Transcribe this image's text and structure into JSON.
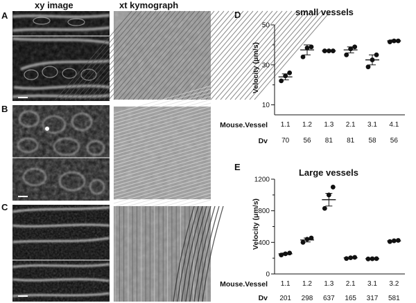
{
  "panels": {
    "header_xy": "xy image",
    "header_xt": "xt kymograph",
    "labels": [
      "A",
      "B",
      "C",
      "D",
      "E"
    ]
  },
  "chart_data": [
    {
      "type": "scatter",
      "panel": "D",
      "title": "small vessels",
      "ylabel": "Velocity (μm/s)",
      "xlabel": "Mouse.Vessel",
      "ylim": [
        5,
        50
      ],
      "yticks": [
        10,
        30,
        50
      ],
      "row2_label": "Dv",
      "categories": [
        "1.1",
        "1.2",
        "1.3",
        "2.1",
        "3.1",
        "4.1"
      ],
      "dv": [
        "70",
        "56",
        "81",
        "81",
        "58",
        "56"
      ],
      "points": [
        [
          22,
          24.5,
          26
        ],
        [
          34,
          38.5,
          39
        ],
        [
          37,
          37,
          37
        ],
        [
          35,
          38,
          39
        ],
        [
          29,
          32.5,
          35
        ],
        [
          41.5,
          42,
          42
        ]
      ],
      "means": [
        24,
        37.5,
        37,
        37.5,
        32.5,
        42
      ],
      "errors": [
        1.5,
        2.5,
        0.2,
        1.5,
        2.5,
        0.5
      ]
    },
    {
      "type": "scatter",
      "panel": "E",
      "title": "Large vessels",
      "ylabel": "Velocity (μm/s)",
      "xlabel": "Mouse.Vessel",
      "ylim": [
        0,
        1200
      ],
      "yticks": [
        0,
        400,
        800,
        1200
      ],
      "row2_label": "Dv",
      "categories": [
        "1.1",
        "1.2",
        "1.3",
        "2.1",
        "3.1",
        "3.2"
      ],
      "dv": [
        "201",
        "298",
        "637",
        "165",
        "317",
        "581"
      ],
      "points": [
        [
          240,
          255,
          265
        ],
        [
          400,
          440,
          455
        ],
        [
          830,
          1000,
          1100
        ],
        [
          195,
          205,
          210
        ],
        [
          190,
          192,
          194
        ],
        [
          410,
          420,
          425
        ]
      ],
      "means": [
        255,
        430,
        940,
        205,
        192,
        418
      ],
      "errors": [
        10,
        25,
        80,
        5,
        1,
        5
      ]
    }
  ]
}
